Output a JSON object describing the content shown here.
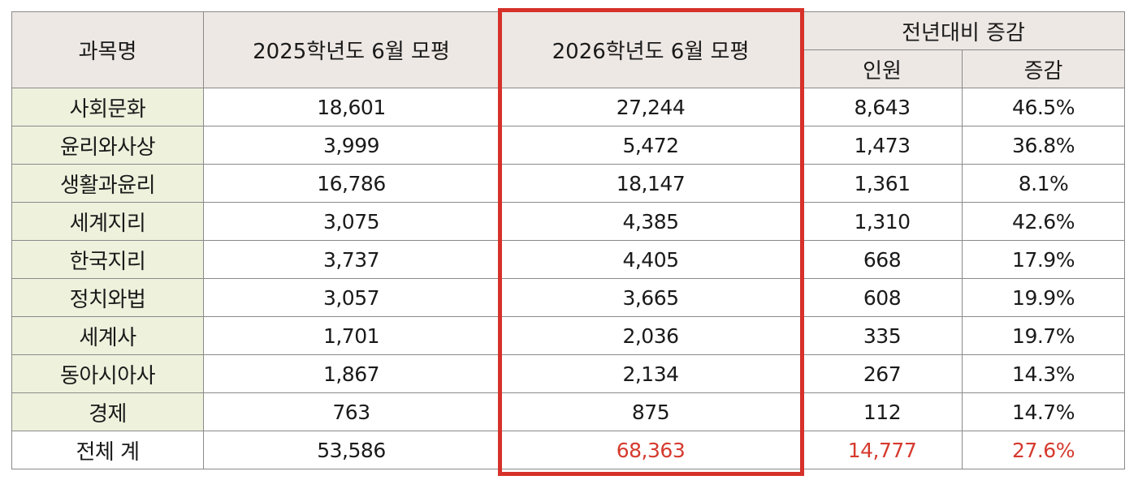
{
  "header": {
    "subject": "과목명",
    "y2025": "2025학년도 6월 모평",
    "y2026": "2026학년도 6월 모평",
    "change_group": "전년대비 증감",
    "change_count": "인원",
    "change_rate": "증감"
  },
  "rows": [
    {
      "subject": "사회문화",
      "y2025": "18,601",
      "y2026": "27,244",
      "count": "8,643",
      "rate": "46.5%"
    },
    {
      "subject": "윤리와사상",
      "y2025": "3,999",
      "y2026": "5,472",
      "count": "1,473",
      "rate": "36.8%"
    },
    {
      "subject": "생활과윤리",
      "y2025": "16,786",
      "y2026": "18,147",
      "count": "1,361",
      "rate": "8.1%"
    },
    {
      "subject": "세계지리",
      "y2025": "3,075",
      "y2026": "4,385",
      "count": "1,310",
      "rate": "42.6%"
    },
    {
      "subject": "한국지리",
      "y2025": "3,737",
      "y2026": "4,405",
      "count": "668",
      "rate": "17.9%"
    },
    {
      "subject": "정치와법",
      "y2025": "3,057",
      "y2026": "3,665",
      "count": "608",
      "rate": "19.9%"
    },
    {
      "subject": "세계사",
      "y2025": "1,701",
      "y2026": "2,036",
      "count": "335",
      "rate": "19.7%"
    },
    {
      "subject": "동아시아사",
      "y2025": "1,867",
      "y2026": "2,134",
      "count": "267",
      "rate": "14.3%"
    },
    {
      "subject": "경제",
      "y2025": "763",
      "y2026": "875",
      "count": "112",
      "rate": "14.7%"
    }
  ],
  "total": {
    "subject": "전체 계",
    "y2025": "53,586",
    "y2026": "68,363",
    "count": "14,777",
    "rate": "27.6%"
  },
  "colors": {
    "header_bg": "#ede8e4",
    "subject_bg": "#eef1dc",
    "highlight_border": "#d6312a",
    "total_highlight_text": "#d53a2e"
  }
}
